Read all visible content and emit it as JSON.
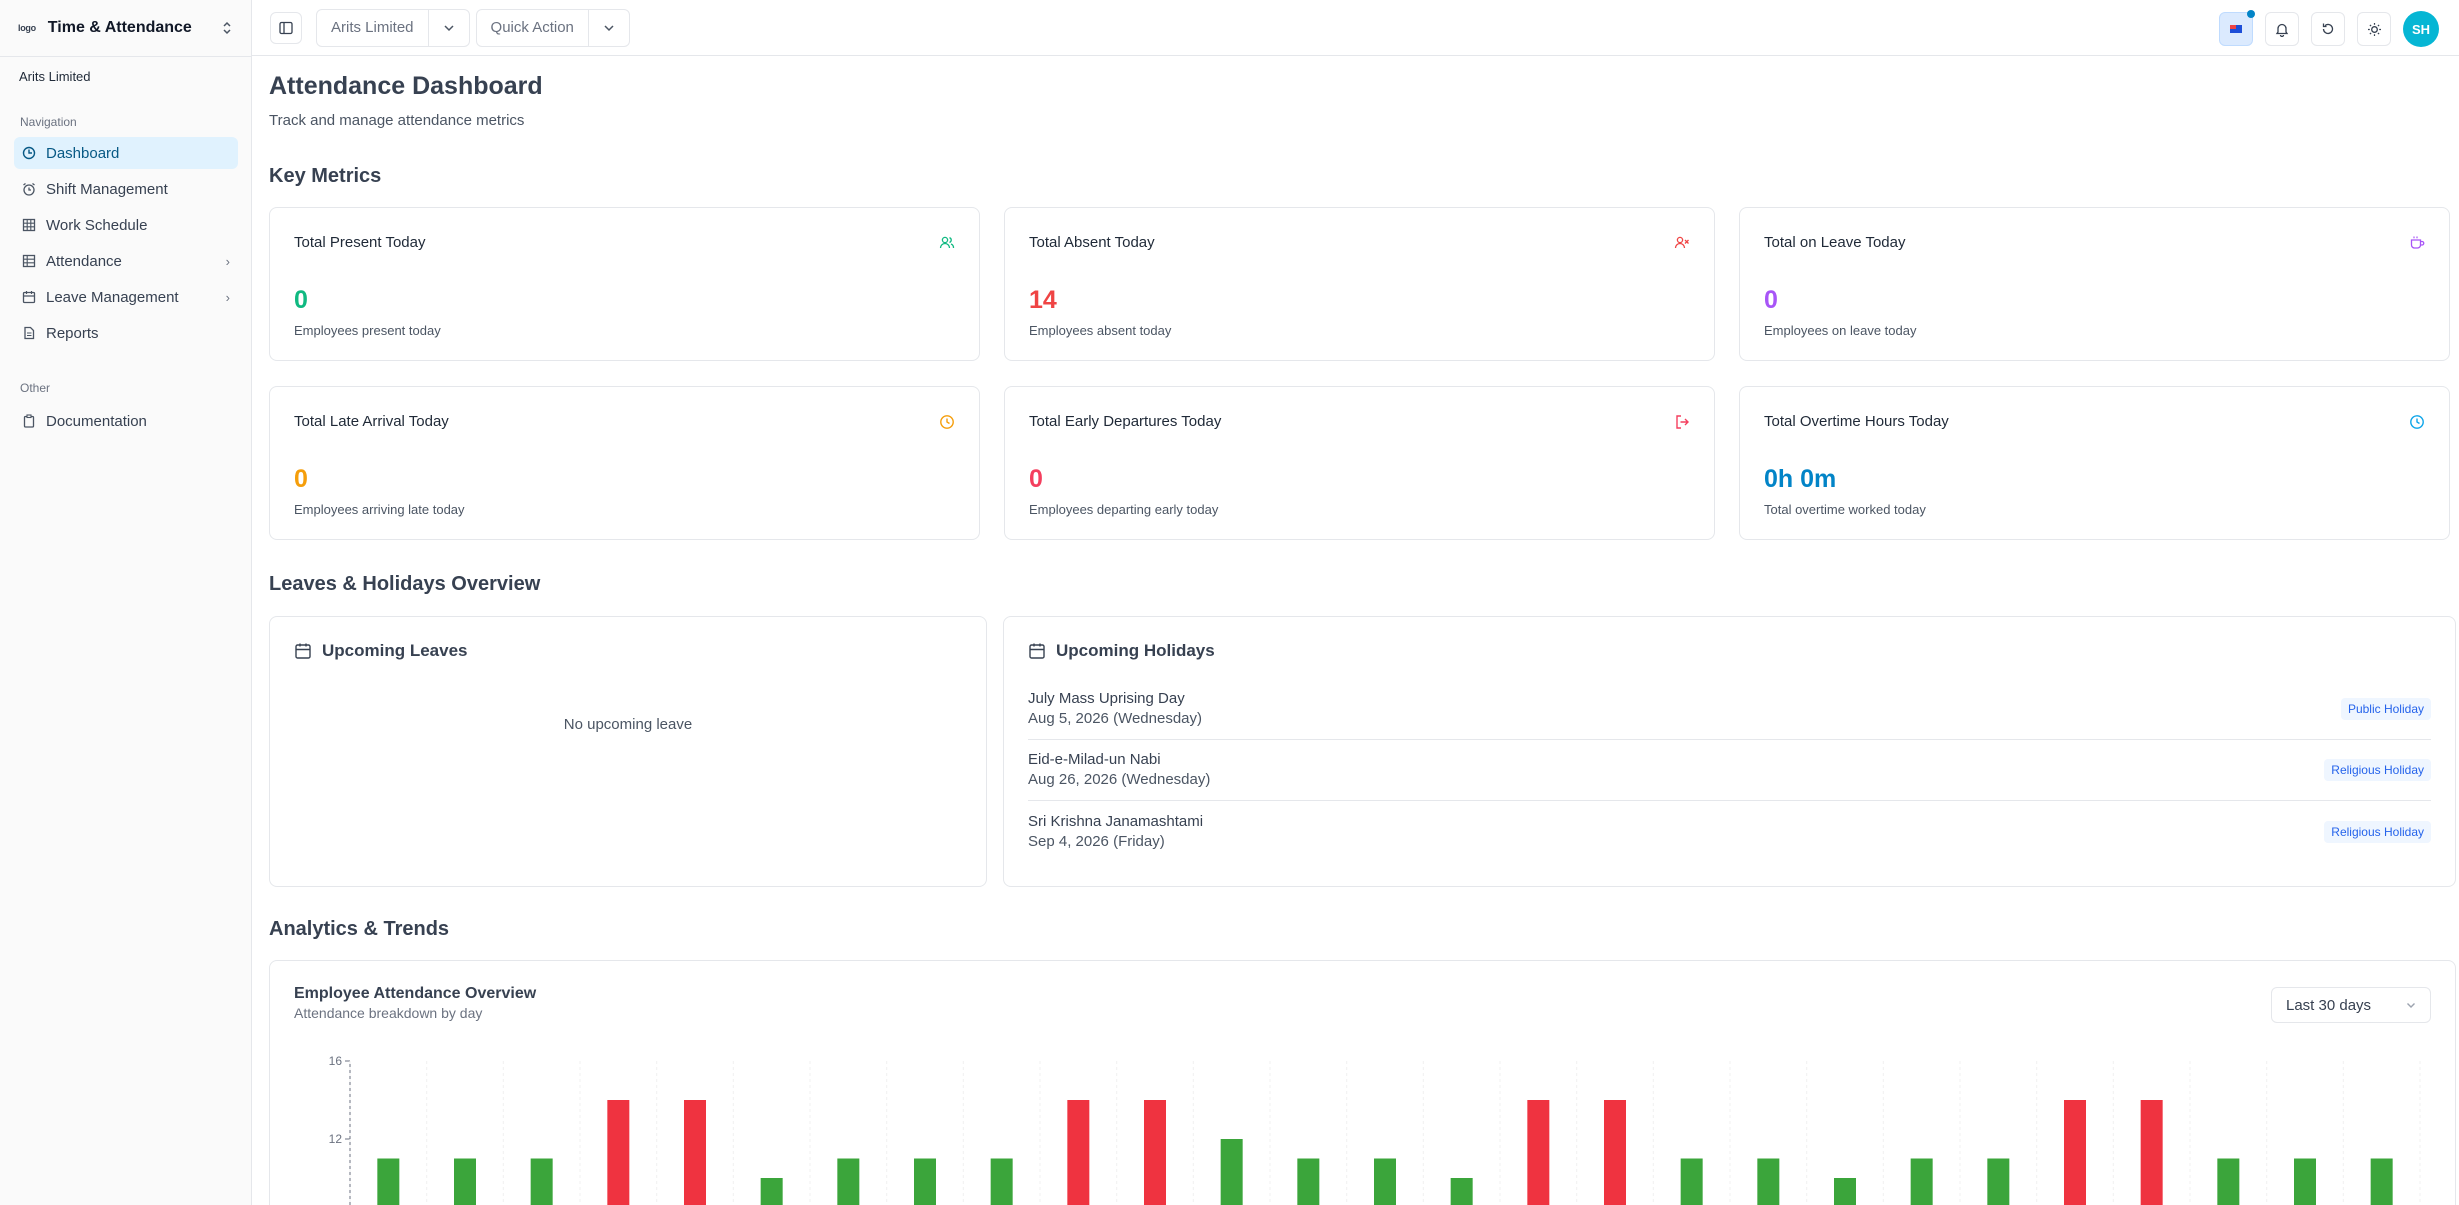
{
  "app": {
    "logo_text": "logo",
    "title": "Time & Attendance",
    "organization": "Arits Limited"
  },
  "sidebar": {
    "nav_label": "Navigation",
    "items": [
      {
        "label": "Dashboard",
        "icon": "dashboard-icon",
        "active": true
      },
      {
        "label": "Shift Management",
        "icon": "alarm-clock-icon"
      },
      {
        "label": "Work Schedule",
        "icon": "grid-table-icon"
      },
      {
        "label": "Attendance",
        "icon": "table-icon",
        "expandable": true
      },
      {
        "label": "Leave Management",
        "icon": "calendar-icon",
        "expandable": true
      },
      {
        "label": "Reports",
        "icon": "document-icon"
      }
    ],
    "other_label": "Other",
    "other_items": [
      {
        "label": "Documentation",
        "icon": "clipboard-icon"
      }
    ]
  },
  "topbar": {
    "company_select": "Arits Limited",
    "quick_action": "Quick Action",
    "avatar": "SH"
  },
  "page": {
    "title": "Attendance Dashboard",
    "subtitle": "Track and manage attendance metrics",
    "key_metrics_heading": "Key Metrics",
    "leaves_heading": "Leaves & Holidays Overview",
    "analytics_heading": "Analytics & Trends"
  },
  "metrics": [
    {
      "title": "Total Present Today",
      "value": "0",
      "desc": "Employees present today",
      "color": "#10b981",
      "icon": "users-icon"
    },
    {
      "title": "Total Absent Today",
      "value": "14",
      "desc": "Employees absent today",
      "color": "#ef4444",
      "icon": "user-x-icon"
    },
    {
      "title": "Total on Leave Today",
      "value": "0",
      "desc": "Employees on leave today",
      "color": "#a855f7",
      "icon": "coffee-icon"
    },
    {
      "title": "Total Late Arrival Today",
      "value": "0",
      "desc": "Employees arriving late today",
      "color": "#f59e0b",
      "icon": "clock-icon"
    },
    {
      "title": "Total Early Departures Today",
      "value": "0",
      "desc": "Employees departing early today",
      "color": "#f43f5e",
      "icon": "logout-icon"
    },
    {
      "title": "Total Overtime Hours Today",
      "value": "0h 0m",
      "desc": "Total overtime worked today",
      "color": "#0ea5e9",
      "icon": "clock-icon"
    }
  ],
  "upcoming_leaves": {
    "title": "Upcoming Leaves",
    "empty_text": "No upcoming leave"
  },
  "upcoming_holidays": {
    "title": "Upcoming Holidays",
    "items": [
      {
        "name": "July Mass Uprising Day",
        "date": "Aug 5, 2026 (Wednesday)",
        "tag": "Public Holiday"
      },
      {
        "name": "Eid-e-Milad-un Nabi",
        "date": "Aug 26, 2026 (Wednesday)",
        "tag": "Religious Holiday"
      },
      {
        "name": "Sri Krishna Janamashtami",
        "date": "Sep 4, 2026 (Friday)",
        "tag": "Religious Holiday"
      }
    ]
  },
  "chart_panel": {
    "title": "Employee Attendance Overview",
    "subtitle": "Attendance breakdown by day",
    "range": "Last 30 days"
  },
  "chart_data": {
    "type": "bar",
    "ytick_labels": [
      "16",
      "12"
    ],
    "ylim": [
      0,
      16
    ],
    "colors": {
      "present": "#3ba53b",
      "absent": "#ef3340"
    },
    "bars": [
      {
        "v": 11,
        "c": "present"
      },
      {
        "v": 11,
        "c": "present"
      },
      {
        "v": 11,
        "c": "present"
      },
      {
        "v": 14,
        "c": "absent"
      },
      {
        "v": 14,
        "c": "absent"
      },
      {
        "v": 10,
        "c": "present"
      },
      {
        "v": 11,
        "c": "present"
      },
      {
        "v": 11,
        "c": "present"
      },
      {
        "v": 11,
        "c": "present"
      },
      {
        "v": 14,
        "c": "absent"
      },
      {
        "v": 14,
        "c": "absent"
      },
      {
        "v": 12,
        "c": "present"
      },
      {
        "v": 11,
        "c": "present"
      },
      {
        "v": 11,
        "c": "present"
      },
      {
        "v": 10,
        "c": "present"
      },
      {
        "v": 14,
        "c": "absent"
      },
      {
        "v": 14,
        "c": "absent"
      },
      {
        "v": 11,
        "c": "present"
      },
      {
        "v": 11,
        "c": "present"
      },
      {
        "v": 10,
        "c": "present"
      },
      {
        "v": 11,
        "c": "present"
      },
      {
        "v": 11,
        "c": "present"
      },
      {
        "v": 14,
        "c": "absent"
      },
      {
        "v": 14,
        "c": "absent"
      },
      {
        "v": 11,
        "c": "present"
      },
      {
        "v": 11,
        "c": "present"
      },
      {
        "v": 11,
        "c": "present"
      }
    ]
  }
}
